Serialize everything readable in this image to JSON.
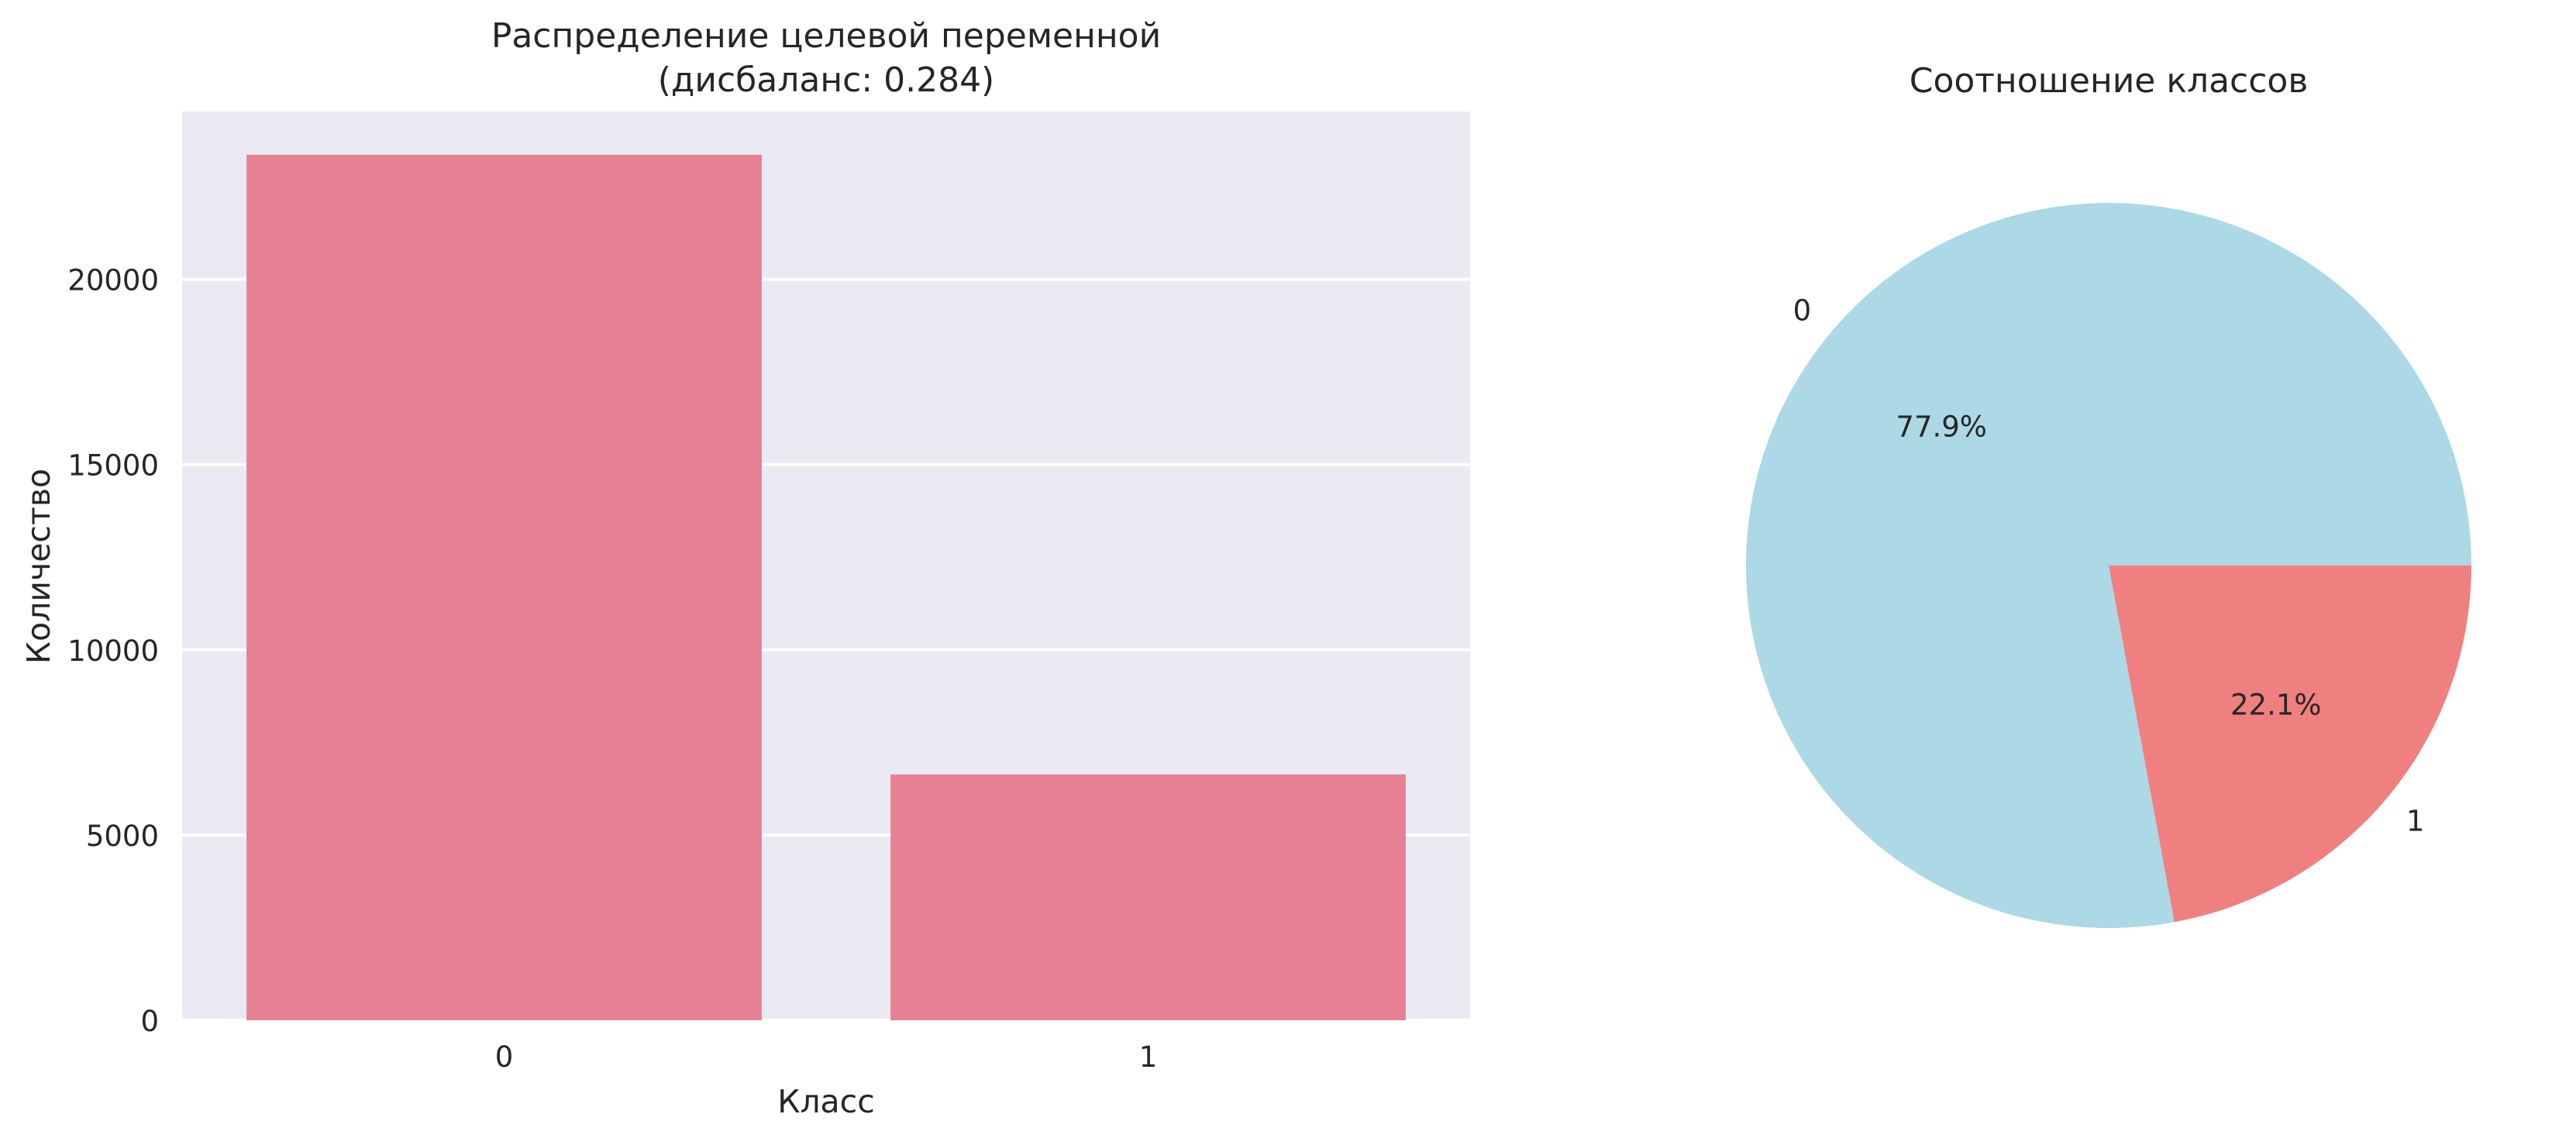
{
  "chart_data": [
    {
      "type": "bar",
      "title": "Распределение целевой переменной\n(дисбаланс: 0.284)",
      "xlabel": "Класс",
      "ylabel": "Количество",
      "categories": [
        "0",
        "1"
      ],
      "values": [
        23364,
        6636
      ],
      "ylim": [
        0,
        24530
      ],
      "yticks": [
        0,
        5000,
        10000,
        15000,
        20000
      ],
      "grid": true,
      "bar_color": "#e78092",
      "background_color": "#eaeaf2",
      "grid_color": "#ffffff"
    },
    {
      "type": "pie",
      "title": "Соотношение классов",
      "labels": [
        "0",
        "1"
      ],
      "values": [
        77.9,
        22.1
      ],
      "autopct": [
        "77.9%",
        "22.1%"
      ],
      "colors": [
        "#add8e6",
        "#f08080"
      ],
      "start_angle_deg": 0
    }
  ]
}
